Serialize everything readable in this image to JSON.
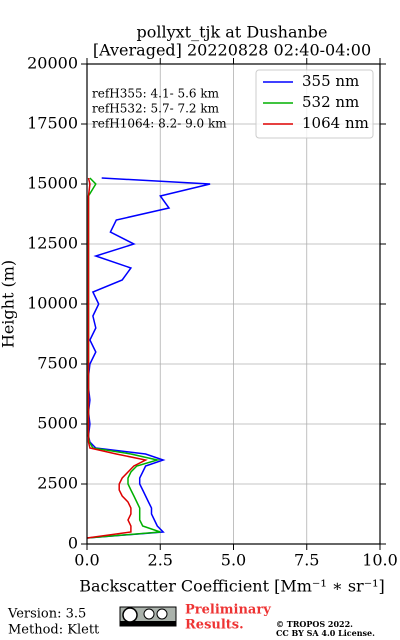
{
  "chart_data": {
    "type": "line",
    "title": "pollyxt_tjk at Dushanbe",
    "subtitle": "[Averaged] 20220828 02:40-04:00",
    "x_label": "Backscatter Coefficient [Mm⁻¹ ∗ sr⁻¹]",
    "y_label": "Height (m)",
    "annotations": [
      "refH355:  4.1- 5.6 km",
      "refH532:  5.7- 7.2 km",
      "refH1064:  8.2- 9.0 km"
    ],
    "xlim": [
      0,
      10
    ],
    "xticks": [
      {
        "value": 0,
        "label": "0.0"
      },
      {
        "value": 2.5,
        "label": "2.5"
      },
      {
        "value": 5,
        "label": "5.0"
      },
      {
        "value": 7.5,
        "label": "7.5"
      },
      {
        "value": 10,
        "label": "10.0"
      }
    ],
    "ylim": [
      0,
      20000
    ],
    "yticks": [
      0,
      2500,
      5000,
      7500,
      10000,
      12500,
      15000,
      17500,
      20000
    ],
    "grid": true,
    "legend": "upper right",
    "y": [
      250,
      500,
      750,
      1000,
      1250,
      1500,
      1750,
      2000,
      2250,
      2500,
      2750,
      3000,
      3250,
      3500,
      3750,
      4000,
      4250,
      4500,
      5000,
      5500,
      6000,
      6500,
      7000,
      7500,
      8000,
      8500,
      9000,
      9500,
      10000,
      10500,
      11000,
      11500,
      12000,
      12500,
      13000,
      13500,
      14000,
      14500,
      15000,
      15250
    ],
    "series": [
      {
        "name": "355 nm",
        "color": "#0000ff",
        "values": [
          0.0,
          2.6,
          2.4,
          2.3,
          2.2,
          2.2,
          2.1,
          2.0,
          1.9,
          1.8,
          1.8,
          1.9,
          2.0,
          2.6,
          2.0,
          0.3,
          0.1,
          0.05,
          0.1,
          0.05,
          0.1,
          0.05,
          0.05,
          0.1,
          0.3,
          0.1,
          0.3,
          0.2,
          0.4,
          0.2,
          1.2,
          1.5,
          0.3,
          1.6,
          0.8,
          1.0,
          2.8,
          2.5,
          4.2,
          0.5
        ]
      },
      {
        "name": "532 nm",
        "color": "#00b000",
        "values": [
          0.0,
          2.5,
          1.9,
          1.8,
          1.8,
          1.8,
          1.7,
          1.6,
          1.5,
          1.4,
          1.4,
          1.5,
          1.7,
          2.4,
          1.5,
          0.2,
          0.08,
          0.05,
          0.05,
          0.05,
          0.05,
          0.05,
          0.05,
          0.05,
          0.05,
          0.05,
          0.05,
          0.05,
          0.05,
          0.05,
          0.05,
          0.05,
          0.05,
          0.05,
          0.05,
          0.05,
          0.05,
          0.05,
          0.3,
          0.1
        ]
      },
      {
        "name": "1064 nm",
        "color": "#dd0000",
        "values": [
          0.0,
          1.5,
          1.5,
          1.4,
          1.5,
          1.5,
          1.4,
          1.2,
          1.1,
          1.1,
          1.2,
          1.4,
          1.6,
          2.0,
          1.0,
          0.1,
          0.05,
          0.05,
          0.05,
          0.05,
          0.05,
          0.05,
          0.05,
          0.05,
          0.05,
          0.05,
          0.05,
          0.05,
          0.05,
          0.05,
          0.05,
          0.05,
          0.05,
          0.05,
          0.05,
          0.05,
          0.05,
          0.05,
          0.1,
          0.05
        ]
      }
    ],
    "footer": {
      "version": "Version: 3.5",
      "method": "Method: Klett",
      "preliminary": [
        "Preliminary",
        "Results."
      ],
      "copyright": [
        "© TROPOS 2022.",
        "CC BY SA 4.0 License."
      ]
    }
  }
}
